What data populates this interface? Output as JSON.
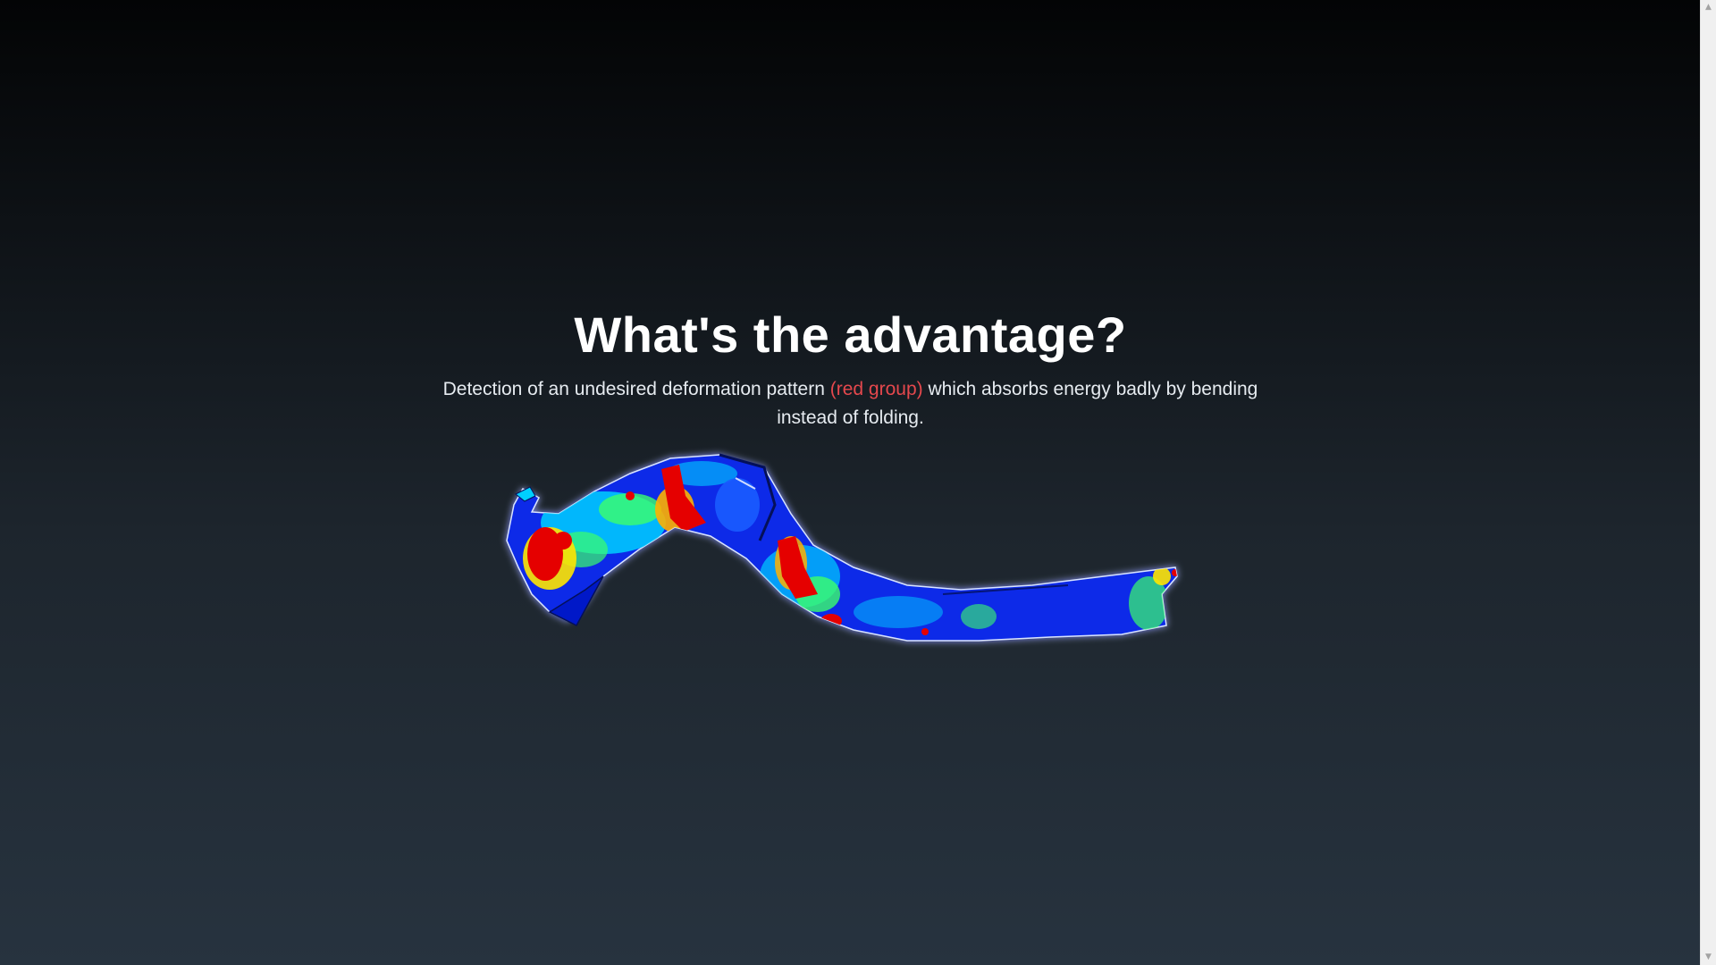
{
  "hero": {
    "title": "What's the advantage?",
    "description_before": "Detection of an undesired deformation pattern ",
    "description_highlight": "(red group)",
    "description_after": " which absorbs energy badly by bending instead of folding."
  },
  "colors": {
    "highlight": "#e5484d",
    "title": "#ffffff",
    "background_top": "#030405",
    "background_bottom": "#27333f"
  },
  "figure": {
    "icon": "deformation-heatmap-image"
  },
  "scrollbar": {
    "up_icon": "chevron-up-icon",
    "down_icon": "chevron-down-icon"
  }
}
